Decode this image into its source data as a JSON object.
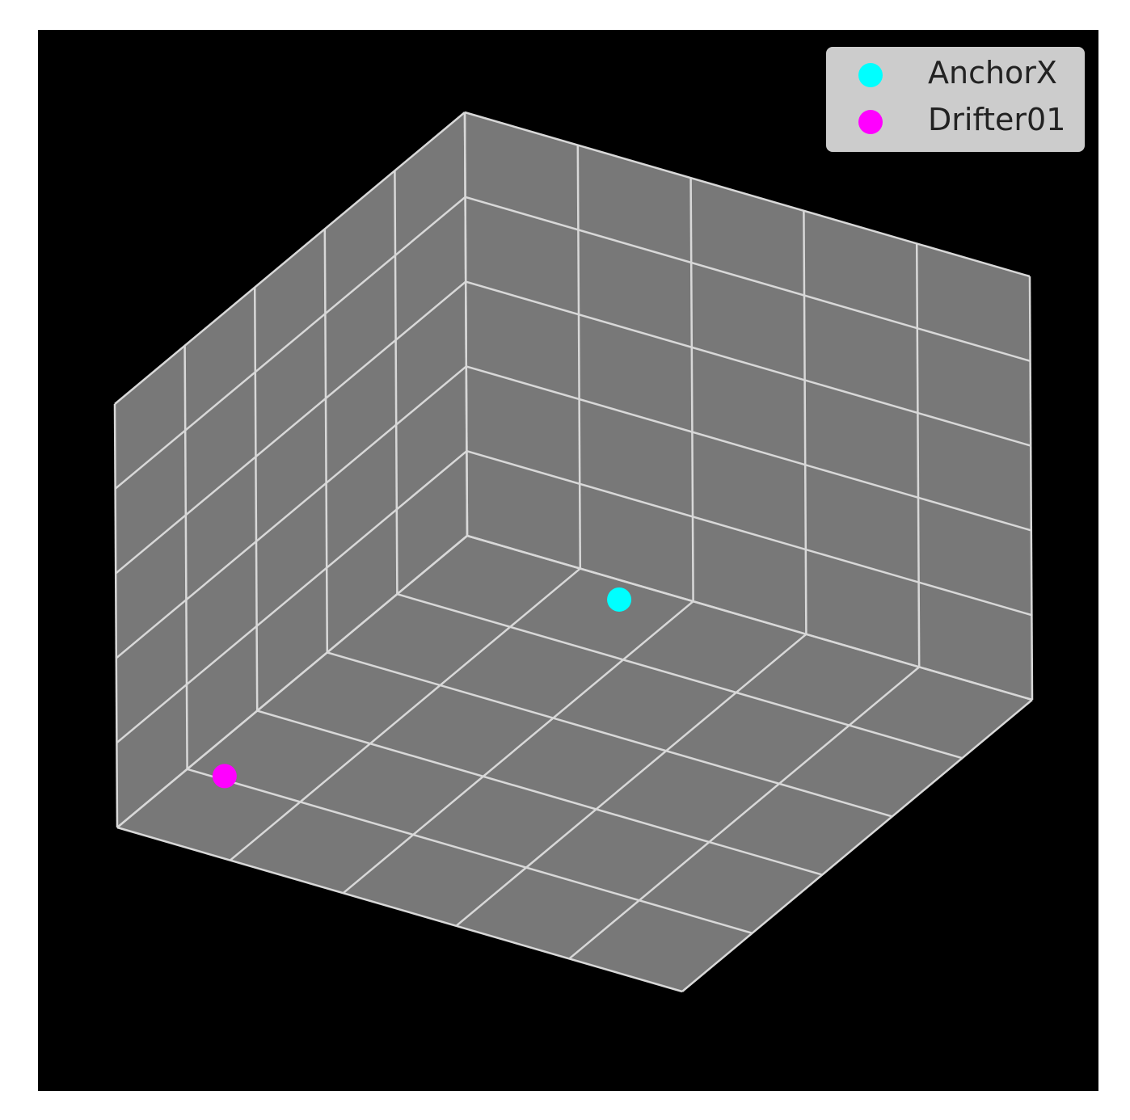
{
  "chart_data": {
    "type": "scatter",
    "projection": "3d",
    "title": "",
    "xlabel": "",
    "ylabel": "",
    "zlabel": "",
    "background": "#000000",
    "pane_color": "#787878",
    "grid": true,
    "grid_color": "#d8d8d8",
    "tick_labels": "hidden",
    "legend": {
      "position": "top-right",
      "background": "#cccccc"
    },
    "series": [
      {
        "name": "AnchorX",
        "color": "#00ffff",
        "x": [
          0.3
        ],
        "y": [
          0.05
        ],
        "z": [
          0.0
        ]
      },
      {
        "name": "Drifter01",
        "color": "#ff00ff",
        "x": [
          0.06
        ],
        "y": [
          0.79
        ],
        "z": [
          0.0
        ]
      }
    ]
  }
}
